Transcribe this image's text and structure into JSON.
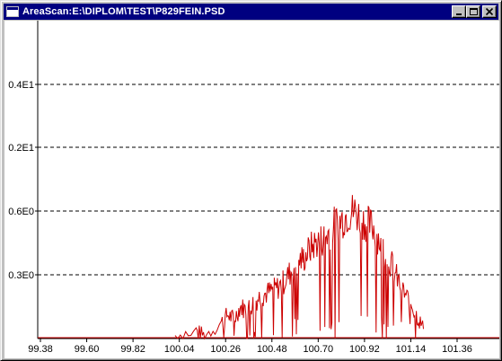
{
  "window": {
    "title": "AreaScan:E:\\DIPLOM\\TEST\\P829FEIN.PSD",
    "icon": "window-icon",
    "buttons": [
      {
        "name": "minimize",
        "icon": "minimize-icon"
      },
      {
        "name": "maximize",
        "icon": "maximize-icon"
      },
      {
        "name": "close",
        "icon": "close-icon"
      }
    ]
  },
  "chart_data": {
    "type": "line",
    "title": "",
    "xlabel": "",
    "ylabel": "",
    "x_ticks": [
      "99.38",
      "99.60",
      "99.82",
      "100.04",
      "100.26",
      "100.48",
      "100.70",
      "100.92",
      "101.14",
      "101.36"
    ],
    "x_tick_values": [
      99.38,
      99.6,
      99.82,
      100.04,
      100.26,
      100.48,
      100.7,
      100.92,
      101.14,
      101.36
    ],
    "xlim": [
      99.38,
      101.54
    ],
    "y_ticks": [
      "0.3E0",
      "0.6E0",
      "0.2E1",
      "0.4E1"
    ],
    "y_scale": "nonlinear (labels as printed)",
    "grid": {
      "horizontal": "dashed",
      "vertical": false
    },
    "colors": {
      "series": "#cc0000",
      "axis": "#000000",
      "grid": "#000000"
    },
    "series": [
      {
        "name": "",
        "x": [
          100.02,
          100.12,
          100.16,
          100.24,
          100.27,
          100.3,
          100.33,
          100.36,
          100.39,
          100.42,
          100.45,
          100.48,
          100.51,
          100.54,
          100.57,
          100.6,
          100.63,
          100.66,
          100.69,
          100.72,
          100.75,
          100.78,
          100.81,
          100.84,
          100.87,
          100.9,
          100.93,
          100.96,
          100.99,
          101.02,
          101.05,
          101.08,
          101.11,
          101.14,
          101.17,
          101.2
        ],
        "y": [
          0.02,
          0.05,
          0.02,
          0.1,
          0.15,
          0.12,
          0.2,
          0.18,
          0.22,
          0.26,
          0.28,
          0.3,
          0.32,
          0.36,
          0.42,
          0.48,
          0.5,
          0.56,
          0.6,
          0.62,
          0.66,
          0.72,
          0.74,
          0.78,
          0.8,
          0.76,
          0.72,
          0.7,
          0.62,
          0.54,
          0.46,
          0.36,
          0.28,
          0.22,
          0.14,
          0.06
        ]
      }
    ]
  }
}
